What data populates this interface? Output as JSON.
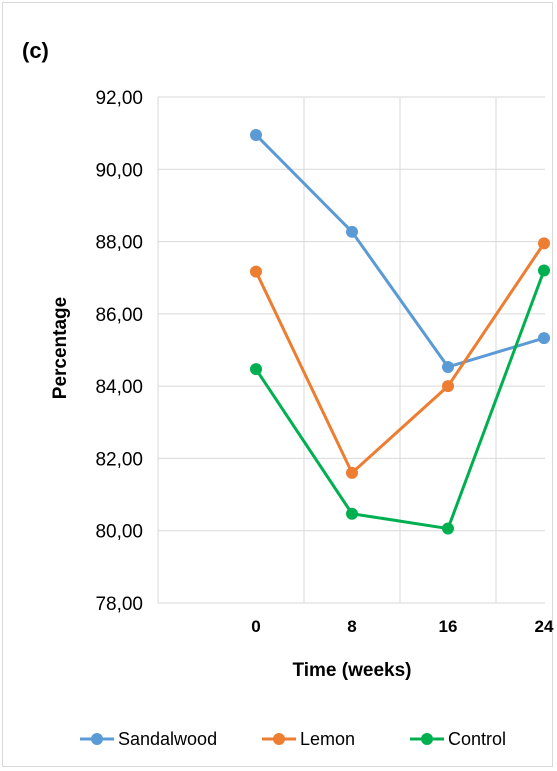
{
  "panel_label": "(c)",
  "chart_data": {
    "type": "line",
    "title": "",
    "xlabel": "Time (weeks)",
    "ylabel": "Percentage",
    "categories": [
      "0",
      "8",
      "16",
      "24"
    ],
    "ylim": [
      78,
      92
    ],
    "yticks": [
      "78,00",
      "80,00",
      "82,00",
      "84,00",
      "86,00",
      "88,00",
      "90,00",
      "92,00"
    ],
    "grid": "horizontal",
    "legend_position": "bottom",
    "series": [
      {
        "name": "Sandalwood",
        "color": "#5b9bd5",
        "values": [
          90.95,
          88.27,
          84.53,
          85.33
        ]
      },
      {
        "name": "Lemon",
        "color": "#ed7d31",
        "values": [
          87.17,
          81.6,
          84.0,
          87.95
        ]
      },
      {
        "name": "Control",
        "color": "#00b050",
        "values": [
          84.47,
          80.47,
          80.06,
          87.2
        ]
      }
    ]
  }
}
